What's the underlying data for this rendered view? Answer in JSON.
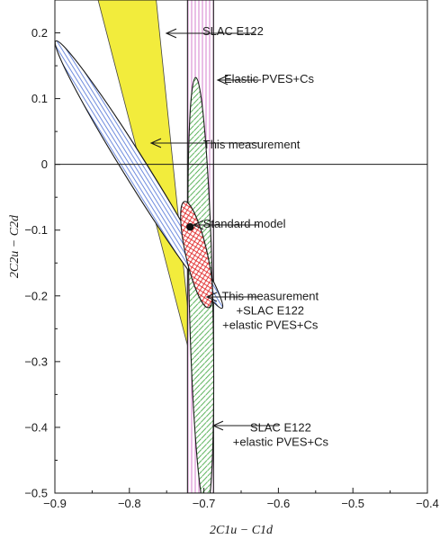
{
  "chart_data": {
    "type": "scatter",
    "title": "",
    "xlabel": "2C1u − C1d",
    "ylabel": "2C2u − C2d",
    "xlim": [
      -0.9,
      -0.4
    ],
    "ylim": [
      -0.5,
      0.25
    ],
    "grid": false,
    "x_ticks": [
      "−0.9",
      "−0.8",
      "−0.7",
      "−0.6",
      "−0.5",
      "−0.4"
    ],
    "y_ticks": [
      "−0.5",
      "−0.4",
      "−0.3",
      "−0.2",
      "−0.1",
      "0",
      "0.1",
      "0.2"
    ],
    "x_tick_values": [
      -0.9,
      -0.8,
      -0.7,
      -0.6,
      -0.5,
      -0.4
    ],
    "y_tick_values": [
      -0.5,
      -0.4,
      -0.3,
      -0.2,
      -0.1,
      0,
      0.1,
      0.2
    ],
    "zero_line_y": 0,
    "standard_model": {
      "label": "Standard model",
      "x": -0.7185,
      "y": -0.0952
    },
    "regions": [
      {
        "label": "SLAC E122",
        "fill": "#f2ec3c",
        "pattern": "solid",
        "polygon": [
          [
            -0.842,
            0.25
          ],
          [
            -0.713,
            -0.315
          ],
          [
            -0.764,
            0.25
          ]
        ]
      },
      {
        "label": "Elastic PVES+Cs",
        "fill": "#d070c8",
        "pattern": "vertical-lines",
        "x_range": [
          -0.722,
          -0.687
        ]
      },
      {
        "label": "This measurement",
        "fill": "#4a6fd6",
        "pattern": "horizontal-lines",
        "ellipse": {
          "cx": -0.7871,
          "cy": -0.0155,
          "rx": 0.2318,
          "ry": 0.0165,
          "angle_deg": -61.2
        }
      },
      {
        "label": "SLAC E122\n+elastic PVES+Cs",
        "fill": "#3fa63f",
        "pattern": "diagonal-lines",
        "ellipse": {
          "cx": -0.7041,
          "cy": -0.197,
          "rx": 0.3291,
          "ry": 0.0158,
          "angle_deg": -88.8
        }
      },
      {
        "label": "This measurement\n+SLAC E122\n+elastic PVES+Cs",
        "fill": "#e02020",
        "pattern": "crosshatch",
        "ellipse": {
          "cx": -0.7098,
          "cy": -0.1372,
          "rx": 0.0823,
          "ry": 0.0145,
          "angle_deg": -78.7
        }
      }
    ],
    "annotations": [
      {
        "text": "SLAC E122",
        "x": -0.78,
        "y": 0.203
      },
      {
        "text": "Elastic PVES+Cs",
        "x": -0.687,
        "y": 0.13
      },
      {
        "text": "This measurement",
        "x": -0.8,
        "y": 0.03
      },
      {
        "text": "Standard model",
        "x": -0.715,
        "y": -0.09
      },
      {
        "text": "This measurement\n+SLAC E122\n+elastic PVES+Cs",
        "x": -0.692,
        "y": -0.2
      },
      {
        "text": "SLAC E122\n+elastic PVES+Cs",
        "x": -0.69,
        "y": -0.4
      }
    ]
  }
}
